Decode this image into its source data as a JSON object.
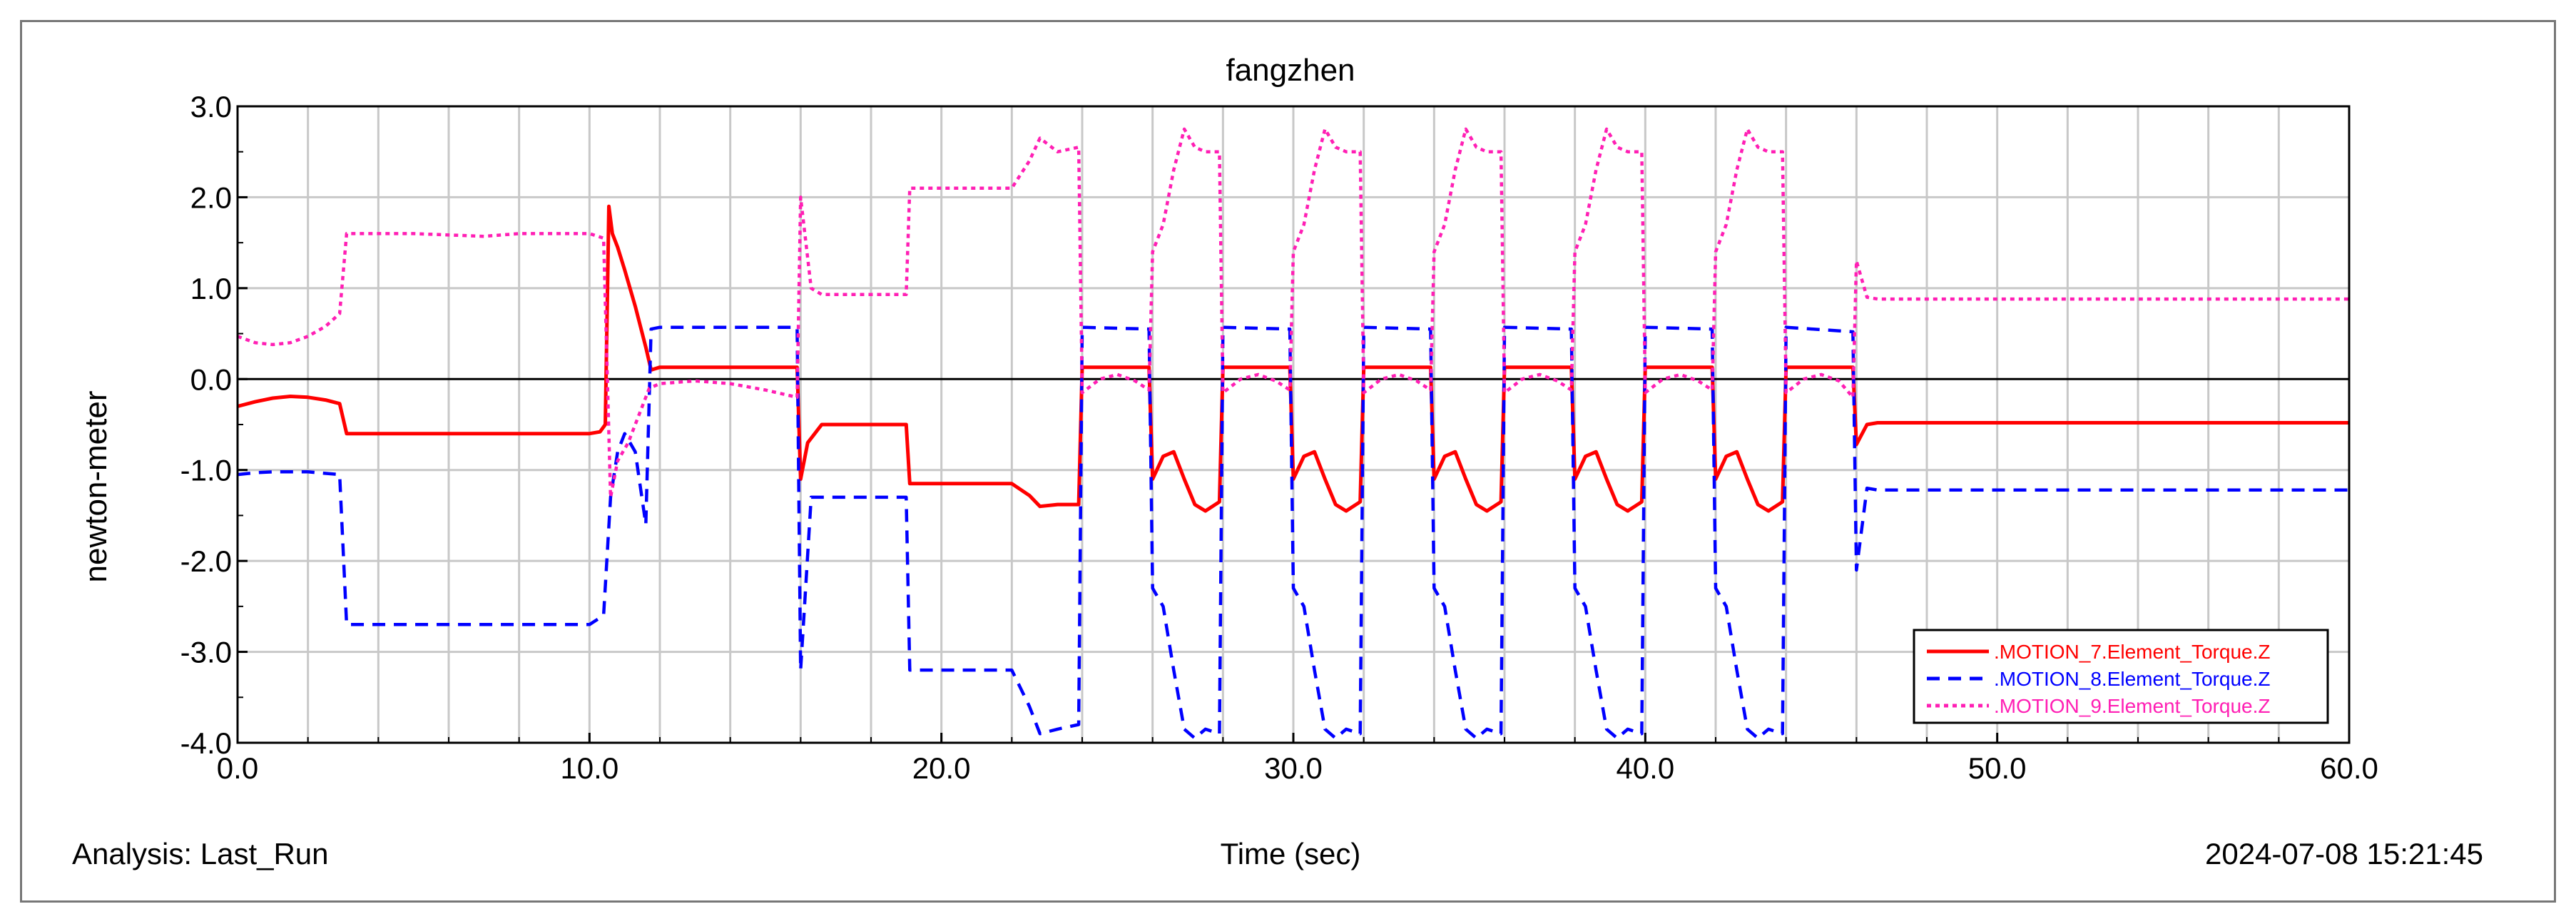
{
  "chart_data": {
    "type": "line",
    "title": "fangzhen",
    "xlabel": "Time (sec)",
    "ylabel": "newton-meter",
    "xlim": [
      0,
      60
    ],
    "ylim": [
      -4,
      3
    ],
    "xticks": [
      0,
      10,
      20,
      30,
      40,
      50,
      60
    ],
    "xtick_labels": [
      "0.0",
      "10.0",
      "20.0",
      "30.0",
      "40.0",
      "50.0",
      "60.0"
    ],
    "yticks": [
      3,
      2,
      1,
      0,
      -1,
      -2,
      -3,
      -4
    ],
    "ytick_labels": [
      "3.0",
      "2.0",
      "1.0",
      "0.0",
      "-1.0",
      "-2.0",
      "-3.0",
      "-4.0"
    ],
    "grid": true,
    "zero_line": true,
    "legend_position": "bottom-right",
    "footer": {
      "analysis": "Analysis:  Last_Run",
      "timestamp": "2024-07-08 15:21:45"
    },
    "series": [
      {
        "name": ".MOTION_7.Element_Torque.Z",
        "color": "#ff0000",
        "style": "solid",
        "points": [
          [
            0,
            -0.3
          ],
          [
            0.5,
            -0.25
          ],
          [
            1,
            -0.21
          ],
          [
            1.5,
            -0.19
          ],
          [
            2,
            -0.2
          ],
          [
            2.5,
            -0.23
          ],
          [
            2.9,
            -0.27
          ],
          [
            3.1,
            -0.6
          ],
          [
            6,
            -0.6
          ],
          [
            10,
            -0.6
          ],
          [
            10.3,
            -0.58
          ],
          [
            10.45,
            -0.5
          ],
          [
            10.55,
            1.9
          ],
          [
            10.65,
            1.6
          ],
          [
            10.8,
            1.45
          ],
          [
            11,
            1.2
          ],
          [
            11.3,
            0.8
          ],
          [
            11.6,
            0.35
          ],
          [
            11.75,
            0.1
          ],
          [
            12,
            0.13
          ],
          [
            14,
            0.13
          ],
          [
            15.9,
            0.13
          ],
          [
            16,
            -1.1
          ],
          [
            16.2,
            -0.7
          ],
          [
            16.6,
            -0.5
          ],
          [
            19,
            -0.5
          ],
          [
            19.1,
            -1.15
          ],
          [
            22,
            -1.15
          ],
          [
            22.5,
            -1.28
          ],
          [
            22.8,
            -1.4
          ],
          [
            23.3,
            -1.38
          ],
          [
            23.9,
            -1.38
          ],
          [
            24,
            0.13
          ],
          [
            25.9,
            0.13
          ],
          [
            26,
            -1.1
          ],
          [
            26.3,
            -0.85
          ],
          [
            26.6,
            -0.8
          ],
          [
            26.9,
            -1.1
          ],
          [
            27.2,
            -1.38
          ],
          [
            27.5,
            -1.45
          ],
          [
            27.9,
            -1.35
          ],
          [
            28,
            0.13
          ],
          [
            29.9,
            0.13
          ],
          [
            30,
            -1.1
          ],
          [
            30.3,
            -0.85
          ],
          [
            30.6,
            -0.8
          ],
          [
            30.9,
            -1.1
          ],
          [
            31.2,
            -1.38
          ],
          [
            31.5,
            -1.45
          ],
          [
            31.9,
            -1.35
          ],
          [
            32,
            0.13
          ],
          [
            33.9,
            0.13
          ],
          [
            34,
            -1.1
          ],
          [
            34.3,
            -0.85
          ],
          [
            34.6,
            -0.8
          ],
          [
            34.9,
            -1.1
          ],
          [
            35.2,
            -1.38
          ],
          [
            35.5,
            -1.45
          ],
          [
            35.9,
            -1.35
          ],
          [
            36,
            0.13
          ],
          [
            37.9,
            0.13
          ],
          [
            38,
            -1.1
          ],
          [
            38.3,
            -0.85
          ],
          [
            38.6,
            -0.8
          ],
          [
            38.9,
            -1.1
          ],
          [
            39.2,
            -1.38
          ],
          [
            39.5,
            -1.45
          ],
          [
            39.9,
            -1.35
          ],
          [
            40,
            0.13
          ],
          [
            41.9,
            0.13
          ],
          [
            42,
            -1.1
          ],
          [
            42.3,
            -0.85
          ],
          [
            42.6,
            -0.8
          ],
          [
            42.9,
            -1.1
          ],
          [
            43.2,
            -1.38
          ],
          [
            43.5,
            -1.45
          ],
          [
            43.9,
            -1.35
          ],
          [
            44,
            0.13
          ],
          [
            45.9,
            0.13
          ],
          [
            46,
            -0.72
          ],
          [
            46.3,
            -0.5
          ],
          [
            46.6,
            -0.48
          ],
          [
            50,
            -0.48
          ],
          [
            60,
            -0.48
          ]
        ]
      },
      {
        "name": ".MOTION_8.Element_Torque.Z",
        "color": "#0000ff",
        "style": "dashed",
        "points": [
          [
            0,
            -1.05
          ],
          [
            0.5,
            -1.03
          ],
          [
            1,
            -1.02
          ],
          [
            2,
            -1.02
          ],
          [
            2.9,
            -1.05
          ],
          [
            3.1,
            -2.7
          ],
          [
            6,
            -2.7
          ],
          [
            10,
            -2.7
          ],
          [
            10.4,
            -2.6
          ],
          [
            10.6,
            -1.3
          ],
          [
            10.8,
            -0.8
          ],
          [
            11,
            -0.6
          ],
          [
            11.3,
            -0.8
          ],
          [
            11.6,
            -1.6
          ],
          [
            11.75,
            0.55
          ],
          [
            12,
            0.57
          ],
          [
            15.9,
            0.57
          ],
          [
            16,
            -3.2
          ],
          [
            16.3,
            -1.3
          ],
          [
            19,
            -1.3
          ],
          [
            19.1,
            -3.2
          ],
          [
            22,
            -3.2
          ],
          [
            22.5,
            -3.6
          ],
          [
            22.8,
            -3.9
          ],
          [
            23.3,
            -3.85
          ],
          [
            23.9,
            -3.8
          ],
          [
            24,
            0.57
          ],
          [
            25.9,
            0.55
          ],
          [
            26,
            -2.3
          ],
          [
            26.3,
            -2.5
          ],
          [
            26.6,
            -3.2
          ],
          [
            26.9,
            -3.85
          ],
          [
            27.2,
            -3.95
          ],
          [
            27.5,
            -3.85
          ],
          [
            27.9,
            -3.9
          ],
          [
            28,
            0.57
          ],
          [
            29.9,
            0.55
          ],
          [
            30,
            -2.3
          ],
          [
            30.3,
            -2.5
          ],
          [
            30.6,
            -3.2
          ],
          [
            30.9,
            -3.85
          ],
          [
            31.2,
            -3.95
          ],
          [
            31.5,
            -3.85
          ],
          [
            31.9,
            -3.9
          ],
          [
            32,
            0.57
          ],
          [
            33.9,
            0.55
          ],
          [
            34,
            -2.3
          ],
          [
            34.3,
            -2.5
          ],
          [
            34.6,
            -3.2
          ],
          [
            34.9,
            -3.85
          ],
          [
            35.2,
            -3.95
          ],
          [
            35.5,
            -3.85
          ],
          [
            35.9,
            -3.9
          ],
          [
            36,
            0.57
          ],
          [
            37.9,
            0.55
          ],
          [
            38,
            -2.3
          ],
          [
            38.3,
            -2.5
          ],
          [
            38.6,
            -3.2
          ],
          [
            38.9,
            -3.85
          ],
          [
            39.2,
            -3.95
          ],
          [
            39.5,
            -3.85
          ],
          [
            39.9,
            -3.9
          ],
          [
            40,
            0.57
          ],
          [
            41.9,
            0.55
          ],
          [
            42,
            -2.3
          ],
          [
            42.3,
            -2.5
          ],
          [
            42.6,
            -3.2
          ],
          [
            42.9,
            -3.85
          ],
          [
            43.2,
            -3.95
          ],
          [
            43.5,
            -3.85
          ],
          [
            43.9,
            -3.9
          ],
          [
            44,
            0.57
          ],
          [
            45.9,
            0.52
          ],
          [
            46,
            -2.1
          ],
          [
            46.3,
            -1.2
          ],
          [
            46.6,
            -1.22
          ],
          [
            50,
            -1.22
          ],
          [
            60,
            -1.22
          ]
        ]
      },
      {
        "name": ".MOTION_9.Element_Torque.Z",
        "color": "#ff1fb4",
        "style": "dotted",
        "points": [
          [
            0,
            0.47
          ],
          [
            0.5,
            0.4
          ],
          [
            1,
            0.38
          ],
          [
            1.5,
            0.4
          ],
          [
            2,
            0.47
          ],
          [
            2.5,
            0.58
          ],
          [
            2.9,
            0.72
          ],
          [
            3.1,
            1.6
          ],
          [
            5,
            1.6
          ],
          [
            7,
            1.57
          ],
          [
            8,
            1.6
          ],
          [
            10,
            1.6
          ],
          [
            10.4,
            1.55
          ],
          [
            10.6,
            -1.3
          ],
          [
            10.8,
            -0.9
          ],
          [
            11.1,
            -0.7
          ],
          [
            11.4,
            -0.4
          ],
          [
            11.7,
            -0.1
          ],
          [
            12,
            -0.05
          ],
          [
            13,
            -0.02
          ],
          [
            14,
            -0.05
          ],
          [
            15,
            -0.12
          ],
          [
            15.9,
            -0.2
          ],
          [
            16,
            2.0
          ],
          [
            16.3,
            1.0
          ],
          [
            16.6,
            0.93
          ],
          [
            19,
            0.93
          ],
          [
            19.1,
            2.1
          ],
          [
            22,
            2.1
          ],
          [
            22.5,
            2.4
          ],
          [
            22.8,
            2.65
          ],
          [
            23.3,
            2.5
          ],
          [
            23.9,
            2.55
          ],
          [
            24,
            -0.15
          ],
          [
            24.5,
            0.0
          ],
          [
            25,
            0.05
          ],
          [
            25.5,
            -0.02
          ],
          [
            25.9,
            -0.12
          ],
          [
            26,
            1.4
          ],
          [
            26.3,
            1.7
          ],
          [
            26.6,
            2.3
          ],
          [
            26.9,
            2.75
          ],
          [
            27.2,
            2.55
          ],
          [
            27.5,
            2.5
          ],
          [
            27.9,
            2.5
          ],
          [
            28,
            -0.15
          ],
          [
            28.5,
            0.0
          ],
          [
            29,
            0.05
          ],
          [
            29.5,
            -0.02
          ],
          [
            29.9,
            -0.12
          ],
          [
            30,
            1.4
          ],
          [
            30.3,
            1.7
          ],
          [
            30.6,
            2.3
          ],
          [
            30.9,
            2.75
          ],
          [
            31.2,
            2.55
          ],
          [
            31.5,
            2.5
          ],
          [
            31.9,
            2.5
          ],
          [
            32,
            -0.15
          ],
          [
            32.5,
            0.0
          ],
          [
            33,
            0.05
          ],
          [
            33.5,
            -0.02
          ],
          [
            33.9,
            -0.12
          ],
          [
            34,
            1.4
          ],
          [
            34.3,
            1.7
          ],
          [
            34.6,
            2.3
          ],
          [
            34.9,
            2.75
          ],
          [
            35.2,
            2.55
          ],
          [
            35.5,
            2.5
          ],
          [
            35.9,
            2.5
          ],
          [
            36,
            -0.15
          ],
          [
            36.5,
            0.0
          ],
          [
            37,
            0.05
          ],
          [
            37.5,
            -0.02
          ],
          [
            37.9,
            -0.12
          ],
          [
            38,
            1.4
          ],
          [
            38.3,
            1.7
          ],
          [
            38.6,
            2.3
          ],
          [
            38.9,
            2.75
          ],
          [
            39.2,
            2.55
          ],
          [
            39.5,
            2.5
          ],
          [
            39.9,
            2.5
          ],
          [
            40,
            -0.15
          ],
          [
            40.5,
            0.0
          ],
          [
            41,
            0.05
          ],
          [
            41.5,
            -0.02
          ],
          [
            41.9,
            -0.12
          ],
          [
            42,
            1.4
          ],
          [
            42.3,
            1.7
          ],
          [
            42.6,
            2.3
          ],
          [
            42.9,
            2.75
          ],
          [
            43.2,
            2.55
          ],
          [
            43.5,
            2.5
          ],
          [
            43.9,
            2.5
          ],
          [
            44,
            -0.15
          ],
          [
            44.5,
            0.0
          ],
          [
            45,
            0.05
          ],
          [
            45.5,
            -0.02
          ],
          [
            45.9,
            -0.2
          ],
          [
            46,
            1.3
          ],
          [
            46.3,
            0.9
          ],
          [
            46.6,
            0.88
          ],
          [
            50,
            0.88
          ],
          [
            60,
            0.88
          ]
        ]
      }
    ]
  }
}
